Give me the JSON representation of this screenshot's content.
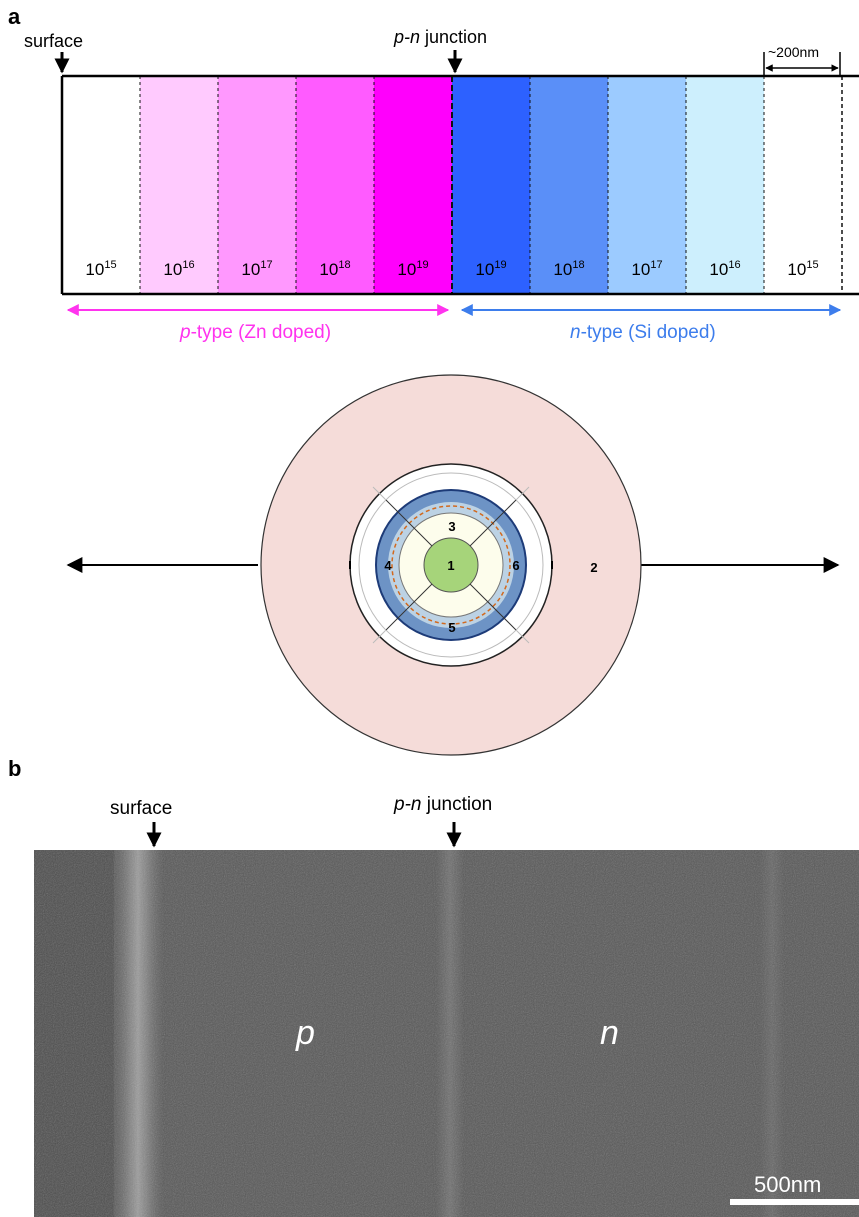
{
  "panel_a": {
    "label": "a",
    "surface_label": "surface",
    "junction_label_italic": "p-n",
    "junction_label_rest": " junction",
    "width_label": "~200nm",
    "layers": [
      {
        "base": "10",
        "exp": "15",
        "color": "#ffffff"
      },
      {
        "base": "10",
        "exp": "16",
        "color": "#ffcafe"
      },
      {
        "base": "10",
        "exp": "17",
        "color": "#ff98fe"
      },
      {
        "base": "10",
        "exp": "18",
        "color": "#ff5bff"
      },
      {
        "base": "10",
        "exp": "19",
        "color": "#ff00fc"
      },
      {
        "base": "10",
        "exp": "19",
        "color": "#2d61ff"
      },
      {
        "base": "10",
        "exp": "18",
        "color": "#5a8ff8"
      },
      {
        "base": "10",
        "exp": "17",
        "color": "#9ccbff"
      },
      {
        "base": "10",
        "exp": "16",
        "color": "#cdeffd"
      },
      {
        "base": "10",
        "exp": "15",
        "color": "#ffffff"
      }
    ],
    "p_type": {
      "italic": "p",
      "rest": "-type (Zn doped)",
      "color": "#ff33ee"
    },
    "n_type": {
      "italic": "n",
      "rest": "-type (Si doped)",
      "color": "#3d7dec"
    }
  },
  "diagram": {
    "regions": [
      "1",
      "2",
      "3",
      "4",
      "5",
      "6"
    ],
    "colors": {
      "outer": "#f5dcd9",
      "ring_white": "#ffffff",
      "ring_blue": "#6d93c5",
      "ring_light": "#bcd2e4",
      "inner_cream": "#fdfdec",
      "core": "#a6d47a"
    }
  },
  "panel_b": {
    "label": "b",
    "surface_label": "surface",
    "junction_label_italic": "p-n",
    "junction_label_rest": " junction",
    "p_label": "p",
    "n_label": "n",
    "scale_label": "500nm"
  }
}
